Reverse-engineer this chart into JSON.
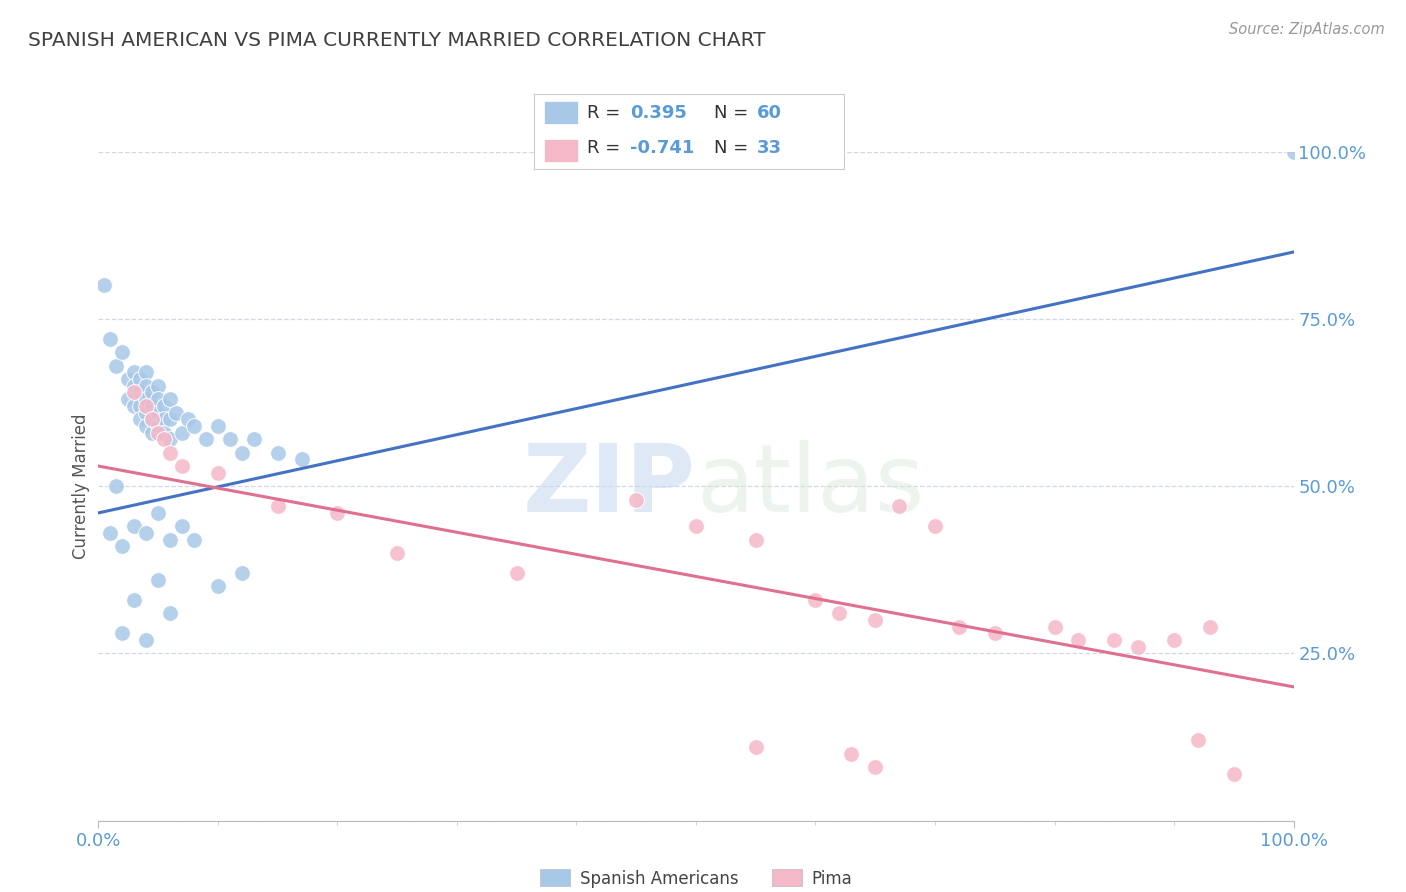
{
  "title": "SPANISH AMERICAN VS PIMA CURRENTLY MARRIED CORRELATION CHART",
  "source": "Source: ZipAtlas.com",
  "ylabel": "Currently Married",
  "watermark": "ZIPatlas",
  "legend_label1": "Spanish Americans",
  "legend_label2": "Pima",
  "r1": 0.395,
  "n1": 60,
  "r2": -0.741,
  "n2": 33,
  "blue_color": "#a8c8e8",
  "pink_color": "#f5b8c8",
  "blue_line_color": "#4472c4",
  "pink_line_color": "#e07090",
  "title_color": "#404040",
  "axis_label_color": "#5b9bd5",
  "background_color": "#ffffff",
  "grid_color": "#d0d8e8",
  "blue_scatter": [
    [
      0.5,
      80.0
    ],
    [
      1.0,
      72.0
    ],
    [
      1.5,
      68.0
    ],
    [
      2.0,
      70.0
    ],
    [
      2.5,
      66.0
    ],
    [
      2.5,
      63.0
    ],
    [
      3.0,
      67.0
    ],
    [
      3.0,
      65.0
    ],
    [
      3.0,
      62.0
    ],
    [
      3.5,
      66.0
    ],
    [
      3.5,
      64.0
    ],
    [
      3.5,
      62.0
    ],
    [
      3.5,
      60.0
    ],
    [
      4.0,
      67.0
    ],
    [
      4.0,
      65.0
    ],
    [
      4.0,
      63.0
    ],
    [
      4.0,
      61.0
    ],
    [
      4.0,
      59.0
    ],
    [
      4.5,
      64.0
    ],
    [
      4.5,
      62.0
    ],
    [
      4.5,
      60.0
    ],
    [
      4.5,
      58.0
    ],
    [
      5.0,
      65.0
    ],
    [
      5.0,
      63.0
    ],
    [
      5.0,
      61.0
    ],
    [
      5.0,
      59.0
    ],
    [
      5.5,
      62.0
    ],
    [
      5.5,
      60.0
    ],
    [
      5.5,
      58.0
    ],
    [
      6.0,
      63.0
    ],
    [
      6.0,
      60.0
    ],
    [
      6.0,
      57.0
    ],
    [
      6.5,
      61.0
    ],
    [
      7.0,
      58.0
    ],
    [
      7.5,
      60.0
    ],
    [
      8.0,
      59.0
    ],
    [
      9.0,
      57.0
    ],
    [
      10.0,
      59.0
    ],
    [
      11.0,
      57.0
    ],
    [
      12.0,
      55.0
    ],
    [
      13.0,
      57.0
    ],
    [
      15.0,
      55.0
    ],
    [
      17.0,
      54.0
    ],
    [
      1.0,
      43.0
    ],
    [
      2.0,
      41.0
    ],
    [
      3.0,
      44.0
    ],
    [
      4.0,
      43.0
    ],
    [
      5.0,
      46.0
    ],
    [
      6.0,
      42.0
    ],
    [
      7.0,
      44.0
    ],
    [
      8.0,
      42.0
    ],
    [
      10.0,
      35.0
    ],
    [
      12.0,
      37.0
    ],
    [
      2.0,
      28.0
    ],
    [
      4.0,
      27.0
    ],
    [
      3.0,
      33.0
    ],
    [
      5.0,
      36.0
    ],
    [
      6.0,
      31.0
    ],
    [
      100.0,
      100.0
    ],
    [
      1.5,
      50.0
    ]
  ],
  "pink_scatter": [
    [
      3.0,
      64.0
    ],
    [
      4.0,
      62.0
    ],
    [
      4.5,
      60.0
    ],
    [
      5.0,
      58.0
    ],
    [
      5.5,
      57.0
    ],
    [
      6.0,
      55.0
    ],
    [
      7.0,
      53.0
    ],
    [
      10.0,
      52.0
    ],
    [
      15.0,
      47.0
    ],
    [
      20.0,
      46.0
    ],
    [
      25.0,
      40.0
    ],
    [
      35.0,
      37.0
    ],
    [
      45.0,
      48.0
    ],
    [
      50.0,
      44.0
    ],
    [
      55.0,
      42.0
    ],
    [
      60.0,
      33.0
    ],
    [
      62.0,
      31.0
    ],
    [
      65.0,
      30.0
    ],
    [
      67.0,
      47.0
    ],
    [
      70.0,
      44.0
    ],
    [
      72.0,
      29.0
    ],
    [
      75.0,
      28.0
    ],
    [
      80.0,
      29.0
    ],
    [
      82.0,
      27.0
    ],
    [
      85.0,
      27.0
    ],
    [
      87.0,
      26.0
    ],
    [
      90.0,
      27.0
    ],
    [
      93.0,
      29.0
    ],
    [
      55.0,
      11.0
    ],
    [
      63.0,
      10.0
    ],
    [
      65.0,
      8.0
    ],
    [
      92.0,
      12.0
    ],
    [
      95.0,
      7.0
    ]
  ],
  "blue_trendline": [
    [
      0,
      46.0
    ],
    [
      100,
      85.0
    ]
  ],
  "pink_trendline": [
    [
      0,
      53.0
    ],
    [
      100,
      20.0
    ]
  ],
  "xlim": [
    0,
    100
  ],
  "ylim": [
    0,
    100
  ],
  "yticks": [
    0,
    25,
    50,
    75,
    100
  ],
  "ytick_labels": [
    "",
    "25.0%",
    "50.0%",
    "75.0%",
    "100.0%"
  ],
  "xtick_labels": [
    "0.0%",
    "100.0%"
  ]
}
